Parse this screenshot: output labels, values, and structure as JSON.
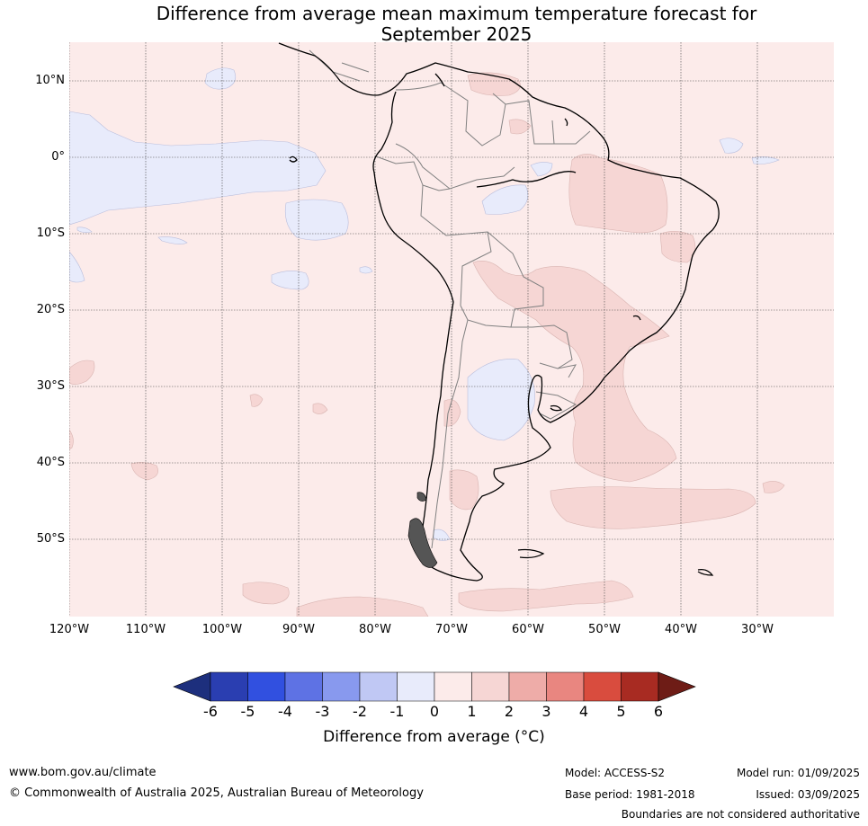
{
  "title_line1": "Difference from average mean maximum temperature forecast for",
  "title_line2": "September 2025",
  "lat_labels": [
    "10°N",
    "0°",
    "10°S",
    "20°S",
    "30°S",
    "40°S",
    "50°S"
  ],
  "lon_labels": [
    "120°W",
    "110°W",
    "100°W",
    "90°W",
    "80°W",
    "70°W",
    "60°W",
    "50°W",
    "40°W",
    "30°W"
  ],
  "colorbar": {
    "ticks": [
      "-6",
      "-5",
      "-4",
      "-3",
      "-2",
      "-1",
      "0",
      "1",
      "2",
      "3",
      "4",
      "5",
      "6"
    ],
    "colors": [
      "#2a3eb1",
      "#3150e0",
      "#5e72e4",
      "#8899ee",
      "#c0c8f4",
      "#e8ebfb",
      "#fcebea",
      "#f6d6d4",
      "#eeaca8",
      "#e98680",
      "#d94c3e",
      "#a82b22"
    ],
    "under_color": "#1d2f7d",
    "over_color": "#6e1c16",
    "label": "Difference from average (°C)"
  },
  "map": {
    "background_color": "#fcebea",
    "negative_color": "#e8ebfb",
    "positive_color": "#f6d6d4",
    "extent": {
      "lon": [
        -120,
        -20
      ],
      "lat": [
        -60,
        15
      ]
    }
  },
  "footer": {
    "website": "www.bom.gov.au/climate",
    "copyright": "© Commonwealth of Australia 2025, Australian Bureau of Meteorology",
    "model": "Model: ACCESS-S2",
    "base_period": "Base period: 1981-2018",
    "model_run": "Model run: 01/09/2025",
    "issued": "Issued: 03/09/2025",
    "disclaimer": "Boundaries are not considered authoritative"
  }
}
